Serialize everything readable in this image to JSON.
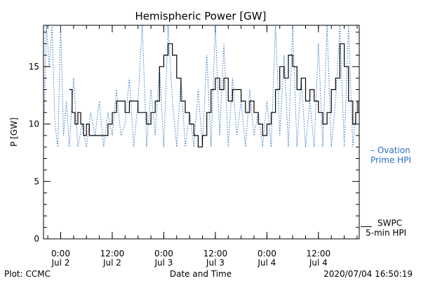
{
  "chart_data": {
    "type": "line",
    "title": "Hemispheric Power [GW]",
    "xlabel": "Date and Time",
    "ylabel": "P [GW]",
    "xlim": [
      "2020-07-01T20:00",
      "2020-07-04T21:30"
    ],
    "ylim": [
      0,
      18.6
    ],
    "y_ticks": [
      0,
      5,
      10,
      15
    ],
    "y_tick_labels": [
      "0",
      "5",
      "10",
      "15"
    ],
    "x_ticks": [
      {
        "t": "2020-07-02T00:00",
        "time": "0:00",
        "date": "Jul 2"
      },
      {
        "t": "2020-07-02T12:00",
        "time": "12:00",
        "date": "Jul 2"
      },
      {
        "t": "2020-07-03T00:00",
        "time": "0:00",
        "date": "Jul 3"
      },
      {
        "t": "2020-07-03T12:00",
        "time": "12:00",
        "date": "Jul 3"
      },
      {
        "t": "2020-07-04T00:00",
        "time": "0:00",
        "date": "Jul 4"
      },
      {
        "t": "2020-07-04T12:00",
        "time": "12:00",
        "date": "Jul 4"
      }
    ],
    "grid": false,
    "series": [
      {
        "name": "SWPC 5-min HPI",
        "label_line1": "SWPC",
        "label_line2": "5-min HPI",
        "label_value": 1,
        "color": "#000000",
        "style": "solid",
        "points": [
          [
            "2020-07-02T02:00",
            13
          ],
          [
            "2020-07-02T02:40",
            11
          ],
          [
            "2020-07-02T03:20",
            10
          ],
          [
            "2020-07-02T04:00",
            11
          ],
          [
            "2020-07-02T04:40",
            10
          ],
          [
            "2020-07-02T05:20",
            9
          ],
          [
            "2020-07-02T06:00",
            10
          ],
          [
            "2020-07-02T06:40",
            9
          ],
          [
            "2020-07-02T08:00",
            9
          ],
          [
            "2020-07-02T09:30",
            9
          ],
          [
            "2020-07-02T11:00",
            10
          ],
          [
            "2020-07-02T12:00",
            11
          ],
          [
            "2020-07-02T13:00",
            12
          ],
          [
            "2020-07-02T14:00",
            12
          ],
          [
            "2020-07-02T15:00",
            11
          ],
          [
            "2020-07-02T16:00",
            12
          ],
          [
            "2020-07-02T17:00",
            12
          ],
          [
            "2020-07-02T18:00",
            11
          ],
          [
            "2020-07-02T19:00",
            11
          ],
          [
            "2020-07-02T20:00",
            10
          ],
          [
            "2020-07-02T21:00",
            11
          ],
          [
            "2020-07-02T22:00",
            12
          ],
          [
            "2020-07-02T23:00",
            15
          ],
          [
            "2020-07-03T00:00",
            16
          ],
          [
            "2020-07-03T01:00",
            17
          ],
          [
            "2020-07-03T02:00",
            16
          ],
          [
            "2020-07-03T03:00",
            14
          ],
          [
            "2020-07-03T04:00",
            12
          ],
          [
            "2020-07-03T05:00",
            11
          ],
          [
            "2020-07-03T06:00",
            10
          ],
          [
            "2020-07-03T07:00",
            9
          ],
          [
            "2020-07-03T08:00",
            8
          ],
          [
            "2020-07-03T09:00",
            9
          ],
          [
            "2020-07-03T10:00",
            11
          ],
          [
            "2020-07-03T11:00",
            13
          ],
          [
            "2020-07-03T12:00",
            14
          ],
          [
            "2020-07-03T13:00",
            13
          ],
          [
            "2020-07-03T14:00",
            14
          ],
          [
            "2020-07-03T15:00",
            12
          ],
          [
            "2020-07-03T16:00",
            13
          ],
          [
            "2020-07-03T17:00",
            13
          ],
          [
            "2020-07-03T18:00",
            12
          ],
          [
            "2020-07-03T19:00",
            11
          ],
          [
            "2020-07-03T20:00",
            12
          ],
          [
            "2020-07-03T21:00",
            11
          ],
          [
            "2020-07-03T22:00",
            10
          ],
          [
            "2020-07-03T23:00",
            9
          ],
          [
            "2020-07-04T00:00",
            10
          ],
          [
            "2020-07-04T01:00",
            11
          ],
          [
            "2020-07-04T02:00",
            13
          ],
          [
            "2020-07-04T03:00",
            15
          ],
          [
            "2020-07-04T04:00",
            14
          ],
          [
            "2020-07-04T05:00",
            16
          ],
          [
            "2020-07-04T06:00",
            15
          ],
          [
            "2020-07-04T07:00",
            13
          ],
          [
            "2020-07-04T08:00",
            14
          ],
          [
            "2020-07-04T09:00",
            12
          ],
          [
            "2020-07-04T10:00",
            13
          ],
          [
            "2020-07-04T11:00",
            12
          ],
          [
            "2020-07-04T12:00",
            11
          ],
          [
            "2020-07-04T13:00",
            10
          ],
          [
            "2020-07-04T14:00",
            11
          ],
          [
            "2020-07-04T15:00",
            13
          ],
          [
            "2020-07-04T16:00",
            14
          ],
          [
            "2020-07-04T17:00",
            17
          ],
          [
            "2020-07-04T18:00",
            15
          ],
          [
            "2020-07-04T19:00",
            12
          ],
          [
            "2020-07-04T20:00",
            10
          ],
          [
            "2020-07-04T20:40",
            11
          ],
          [
            "2020-07-04T21:10",
            12
          ]
        ]
      },
      {
        "name": "Ovation Prime HPI",
        "label_line1": "– Ovation",
        "label_line2": "Prime HPI",
        "label_value": 7.7,
        "color": "#2a6fc2",
        "style": "dotted",
        "points": [
          [
            "2020-07-01T20:00",
            8
          ],
          [
            "2020-07-01T20:40",
            18.6
          ],
          [
            "2020-07-01T21:20",
            15
          ],
          [
            "2020-07-01T22:00",
            18.6
          ],
          [
            "2020-07-01T22:40",
            10
          ],
          [
            "2020-07-01T23:20",
            8
          ],
          [
            "2020-07-02T00:00",
            18.6
          ],
          [
            "2020-07-02T00:40",
            9
          ],
          [
            "2020-07-02T01:20",
            12
          ],
          [
            "2020-07-02T02:00",
            8
          ],
          [
            "2020-07-02T03:00",
            14
          ],
          [
            "2020-07-02T04:00",
            8
          ],
          [
            "2020-07-02T05:00",
            10
          ],
          [
            "2020-07-02T06:00",
            8
          ],
          [
            "2020-07-02T07:00",
            11
          ],
          [
            "2020-07-02T08:00",
            9
          ],
          [
            "2020-07-02T09:00",
            12
          ],
          [
            "2020-07-02T10:00",
            8
          ],
          [
            "2020-07-02T11:00",
            11
          ],
          [
            "2020-07-02T12:00",
            9
          ],
          [
            "2020-07-02T13:00",
            13
          ],
          [
            "2020-07-02T14:00",
            9
          ],
          [
            "2020-07-02T15:00",
            10
          ],
          [
            "2020-07-02T16:00",
            14
          ],
          [
            "2020-07-02T17:00",
            8
          ],
          [
            "2020-07-02T18:00",
            12
          ],
          [
            "2020-07-02T19:00",
            18.6
          ],
          [
            "2020-07-02T20:00",
            8
          ],
          [
            "2020-07-02T21:00",
            13
          ],
          [
            "2020-07-02T22:00",
            9
          ],
          [
            "2020-07-02T23:00",
            15
          ],
          [
            "2020-07-03T00:00",
            8
          ],
          [
            "2020-07-03T01:00",
            18.6
          ],
          [
            "2020-07-03T02:00",
            12
          ],
          [
            "2020-07-03T03:00",
            8
          ],
          [
            "2020-07-03T04:00",
            14
          ],
          [
            "2020-07-03T05:00",
            8
          ],
          [
            "2020-07-03T06:00",
            11
          ],
          [
            "2020-07-03T07:00",
            8
          ],
          [
            "2020-07-03T08:00",
            13
          ],
          [
            "2020-07-03T09:00",
            8
          ],
          [
            "2020-07-03T10:00",
            16
          ],
          [
            "2020-07-03T11:00",
            8
          ],
          [
            "2020-07-03T12:00",
            18.6
          ],
          [
            "2020-07-03T13:00",
            9
          ],
          [
            "2020-07-03T14:00",
            17
          ],
          [
            "2020-07-03T15:00",
            8
          ],
          [
            "2020-07-03T16:00",
            14
          ],
          [
            "2020-07-03T17:00",
            9
          ],
          [
            "2020-07-03T18:00",
            12
          ],
          [
            "2020-07-03T19:00",
            8
          ],
          [
            "2020-07-03T20:00",
            13
          ],
          [
            "2020-07-03T21:00",
            9
          ],
          [
            "2020-07-03T22:00",
            11
          ],
          [
            "2020-07-03T23:00",
            8
          ],
          [
            "2020-07-04T00:00",
            12
          ],
          [
            "2020-07-04T01:00",
            8
          ],
          [
            "2020-07-04T02:00",
            18.6
          ],
          [
            "2020-07-04T03:00",
            9
          ],
          [
            "2020-07-04T04:00",
            16
          ],
          [
            "2020-07-04T05:00",
            8
          ],
          [
            "2020-07-04T06:00",
            18.6
          ],
          [
            "2020-07-04T07:00",
            8
          ],
          [
            "2020-07-04T08:00",
            14
          ],
          [
            "2020-07-04T09:00",
            8
          ],
          [
            "2020-07-04T10:00",
            12
          ],
          [
            "2020-07-04T11:00",
            8
          ],
          [
            "2020-07-04T12:00",
            17
          ],
          [
            "2020-07-04T13:00",
            8
          ],
          [
            "2020-07-04T14:00",
            18.6
          ],
          [
            "2020-07-04T15:00",
            8
          ],
          [
            "2020-07-04T16:00",
            12
          ],
          [
            "2020-07-04T17:00",
            18.6
          ],
          [
            "2020-07-04T18:00",
            8
          ],
          [
            "2020-07-04T19:00",
            18.6
          ],
          [
            "2020-07-04T20:00",
            8
          ],
          [
            "2020-07-04T21:00",
            12
          ]
        ]
      }
    ]
  },
  "footer": {
    "credit": "Plot: CCMC",
    "timestamp": "2020/07/04 16:50:19"
  }
}
